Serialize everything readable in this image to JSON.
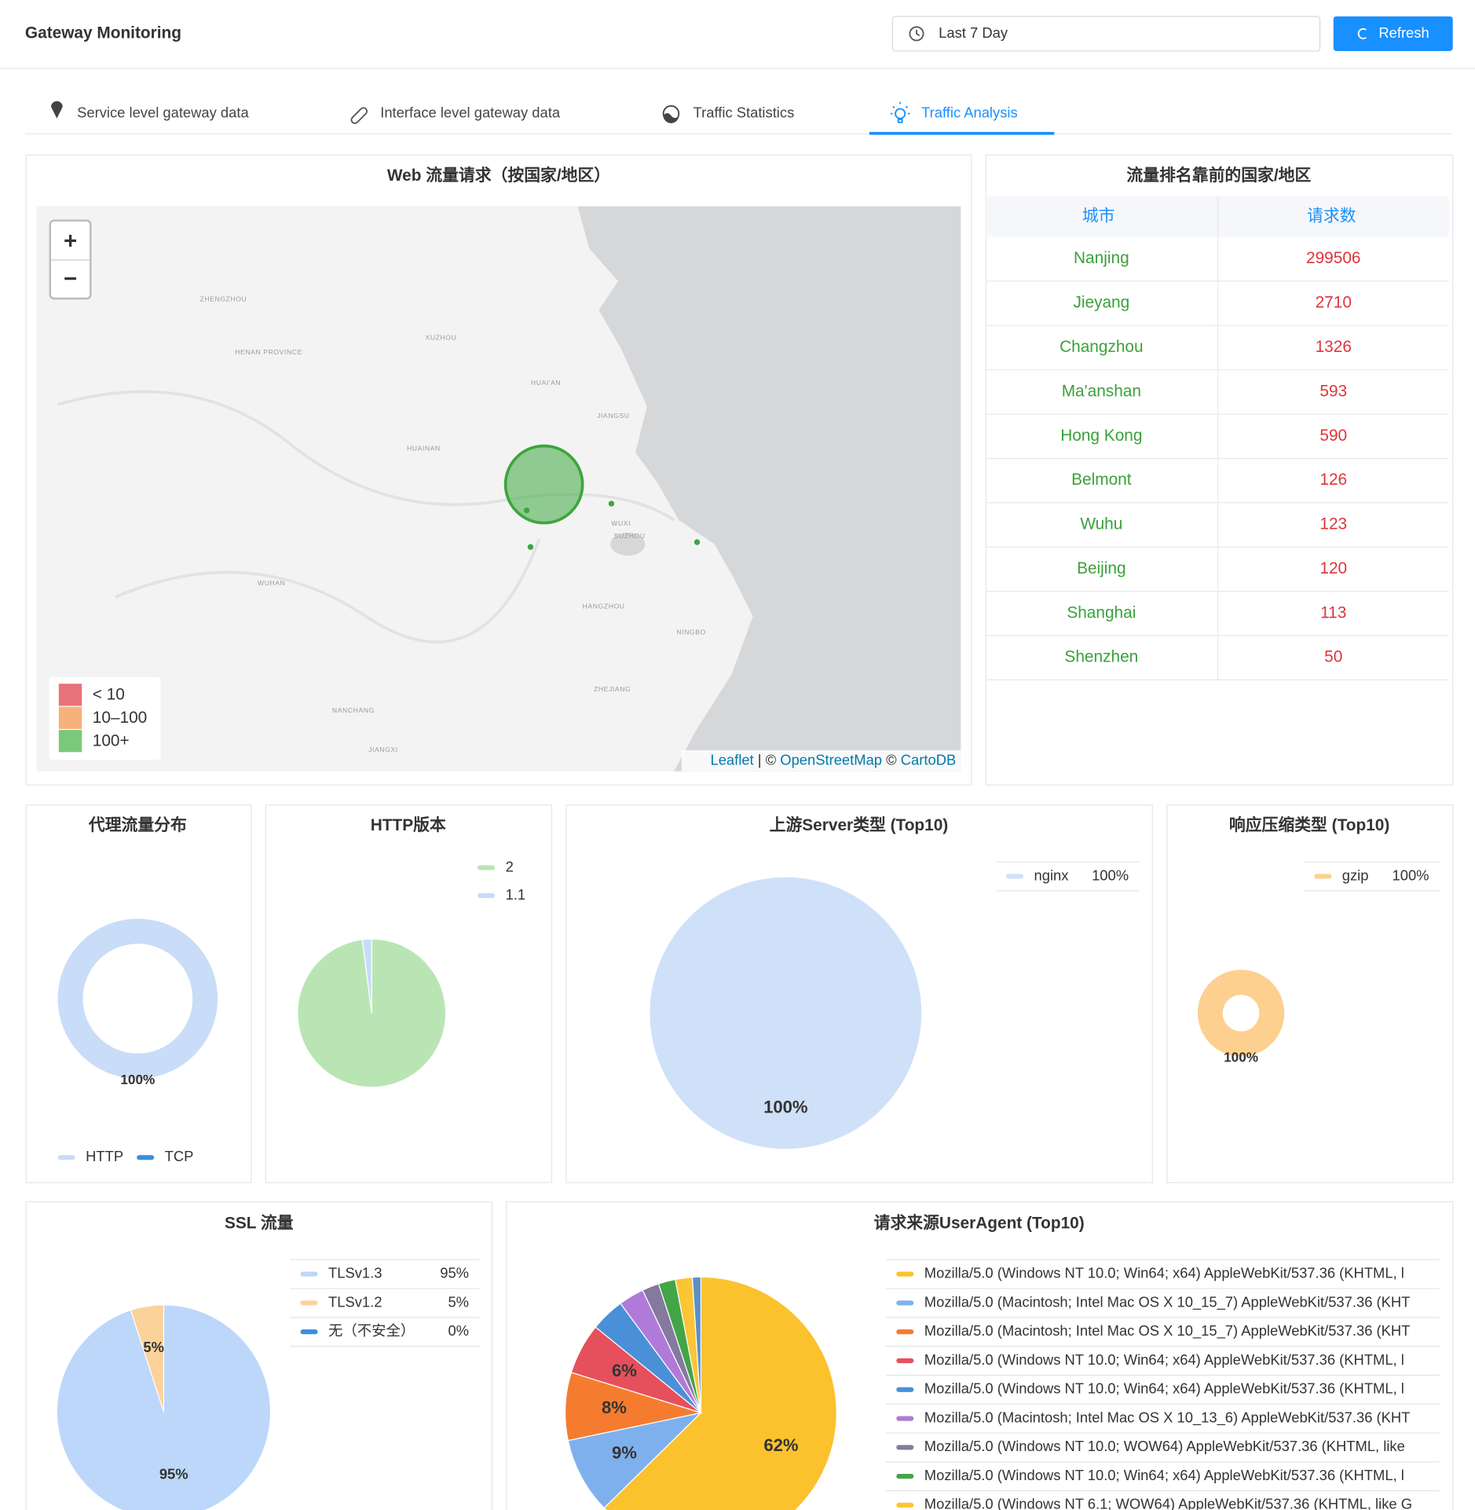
{
  "header": {
    "title": "Gateway Monitoring",
    "date_range": "Last 7 Day",
    "refresh": "Refresh"
  },
  "tabs": [
    {
      "label": "Service level gateway data"
    },
    {
      "label": "Interface level gateway data"
    },
    {
      "label": "Traffic Statistics"
    },
    {
      "label": "Traffic Analysis"
    }
  ],
  "active_tab": 3,
  "map": {
    "title": "Web 流量请求（按国家/地区）",
    "zoom_in": "+",
    "zoom_out": "−",
    "legend": [
      {
        "label": "< 10",
        "color": "#e6636b"
      },
      {
        "label": "10–100",
        "color": "#f6a96b"
      },
      {
        "label": "100+",
        "color": "#6cc36a"
      }
    ],
    "attribution": [
      "Leaflet",
      " | © ",
      "OpenStreetMap",
      " © ",
      "CartoDB"
    ],
    "labels": [
      "ZHENGZHOU",
      "HENAN PROVINCE",
      "XUZHOU",
      "HUAI'AN",
      "JIANGSU",
      "HUAINAN",
      "WUXI",
      "SUZHOU",
      "WUHAN",
      "HANGZHOU",
      "NINGBO",
      "ZHEJIANG",
      "NANCHANG",
      "JIANGXI"
    ]
  },
  "table": {
    "title": "流量排名靠前的国家/地区",
    "columns": [
      "城市",
      "请求数"
    ],
    "rows": [
      [
        "Nanjing",
        299506
      ],
      [
        "Jieyang",
        2710
      ],
      [
        "Changzhou",
        1326
      ],
      [
        "Ma'anshan",
        593
      ],
      [
        "Hong Kong",
        590
      ],
      [
        "Belmont",
        126
      ],
      [
        "Wuhu",
        123
      ],
      [
        "Beijing",
        120
      ],
      [
        "Shanghai",
        113
      ],
      [
        "Shenzhen",
        50
      ]
    ]
  },
  "chart_data": [
    {
      "type": "donut",
      "title": "代理流量分布",
      "categories": [
        "HTTP",
        "TCP"
      ],
      "values": [
        100,
        0
      ],
      "value_labels": [
        "100%",
        null
      ],
      "colors": [
        "#c9dcf8",
        "#3b8de0"
      ],
      "legend_values": false
    },
    {
      "type": "pie",
      "title": "HTTP版本",
      "categories": [
        "2",
        "1.1"
      ],
      "values": [
        98,
        2
      ],
      "colors": [
        "#b9e5b4",
        "#c6dcf8"
      ],
      "legend_values": false
    },
    {
      "type": "pie",
      "title": "上游Server类型 (Top10)",
      "categories": [
        "nginx"
      ],
      "values": [
        100
      ],
      "value_labels": [
        "100%"
      ],
      "colors": [
        "#cfe0f9"
      ],
      "legend_values": true
    },
    {
      "type": "donut",
      "title": "响应压缩类型 (Top10)",
      "categories": [
        "gzip"
      ],
      "values": [
        100
      ],
      "value_labels": [
        "100%"
      ],
      "colors": [
        "#fdd08f"
      ],
      "legend_values": true
    },
    {
      "type": "pie",
      "title": "SSL 流量",
      "categories": [
        "TLSv1.3",
        "TLSv1.2",
        "无（不安全）"
      ],
      "values": [
        95,
        5,
        0
      ],
      "value_labels": [
        "95%",
        "5%",
        "0%"
      ],
      "colors": [
        "#bcd7f9",
        "#fbd29a",
        "#3b8de0"
      ],
      "legend_values": true
    },
    {
      "type": "pie",
      "title": "请求来源UserAgent (Top10)",
      "categories": [
        "Mozilla/5.0 (Windows NT 10.0; Win64; x64) AppleWebKit/537.36 (KHTML, l",
        "Mozilla/5.0 (Macintosh; Intel Mac OS X 10_15_7) AppleWebKit/537.36 (KHT",
        "Mozilla/5.0 (Macintosh; Intel Mac OS X 10_15_7) AppleWebKit/537.36 (KHT",
        "Mozilla/5.0 (Windows NT 10.0; Win64; x64) AppleWebKit/537.36 (KHTML, l",
        "Mozilla/5.0 (Windows NT 10.0; Win64; x64) AppleWebKit/537.36 (KHTML, l",
        "Mozilla/5.0 (Macintosh; Intel Mac OS X 10_13_6) AppleWebKit/537.36 (KHT",
        "Mozilla/5.0 (Windows NT 10.0; WOW64) AppleWebKit/537.36 (KHTML, like",
        "Mozilla/5.0 (Windows NT 10.0; Win64; x64) AppleWebKit/537.36 (KHTML, l",
        "Mozilla/5.0 (Windows NT 6.1; WOW64) AppleWebKit/537.36 (KHTML, like G",
        null
      ],
      "values": [
        62,
        9,
        8,
        6,
        4,
        3,
        2,
        2,
        2,
        1
      ],
      "value_labels": [
        "62%",
        "9%",
        "8%",
        "6%",
        null,
        null,
        null,
        null,
        null,
        null
      ],
      "colors": [
        "#fbc22e",
        "#7fb0ee",
        "#f57c2f",
        "#e5505c",
        "#4a90d9",
        "#b07bd8",
        "#85799f",
        "#43a547",
        "#fbc536",
        "#5b8fc7"
      ],
      "legend_values": false
    }
  ]
}
